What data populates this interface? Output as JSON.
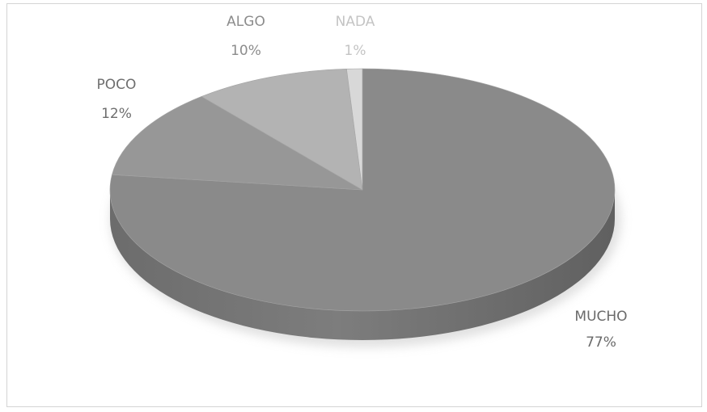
{
  "chart_data": {
    "type": "pie",
    "style": "3d",
    "title": "",
    "categories": [
      "MUCHO",
      "POCO",
      "ALGO",
      "NADA"
    ],
    "values": [
      77,
      12,
      10,
      1
    ],
    "labels": [
      "77%",
      "12%",
      "10%",
      "1%"
    ],
    "colors": [
      "#8a8a8a",
      "#979797",
      "#b3b3b3",
      "#d8d8d8"
    ],
    "label_colors": [
      "#6a6a6a",
      "#6e6e6e",
      "#8c8c8c",
      "#c4c4c4"
    ],
    "legend": "none",
    "grid": false
  }
}
